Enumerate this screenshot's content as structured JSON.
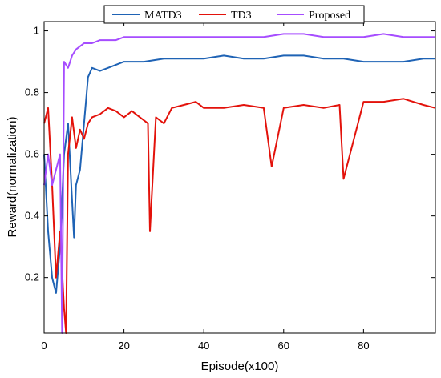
{
  "chart_data": {
    "type": "line",
    "xlabel": "Episode(x100)",
    "ylabel": "Reward(normalization)",
    "xlim": [
      0,
      98
    ],
    "ylim": [
      0.02,
      1.03
    ],
    "xticks": [
      0,
      20,
      40,
      60,
      80
    ],
    "yticks": [
      0.2,
      0.4,
      0.6,
      0.8,
      1
    ],
    "xtick_labels": [
      "0",
      "20",
      "40",
      "60",
      "80"
    ],
    "ytick_labels": [
      "0.2",
      "0.4",
      "0.6",
      "0.8",
      "1"
    ],
    "grid": false,
    "legend_position": "top-center, above plot",
    "series": [
      {
        "name": "MATD3",
        "color": "#1f63b5",
        "x": [
          0,
          1,
          2,
          3,
          4,
          5,
          6,
          7,
          7.5,
          8,
          9,
          10,
          11,
          12,
          14,
          16,
          18,
          20,
          25,
          30,
          35,
          40,
          45,
          50,
          55,
          60,
          65,
          70,
          75,
          80,
          85,
          90,
          95,
          98
        ],
        "values": [
          0.6,
          0.35,
          0.2,
          0.15,
          0.3,
          0.6,
          0.7,
          0.45,
          0.33,
          0.5,
          0.55,
          0.7,
          0.85,
          0.88,
          0.87,
          0.88,
          0.89,
          0.9,
          0.9,
          0.91,
          0.91,
          0.91,
          0.92,
          0.91,
          0.91,
          0.92,
          0.92,
          0.91,
          0.91,
          0.9,
          0.9,
          0.9,
          0.91,
          0.91
        ]
      },
      {
        "name": "TD3",
        "color": "#e3120b",
        "x": [
          0,
          1,
          2,
          3,
          4,
          5,
          5.5,
          6,
          7,
          8,
          9,
          10,
          11,
          12,
          14,
          16,
          18,
          20,
          22,
          24,
          26,
          26.5,
          28,
          30,
          32,
          35,
          38,
          40,
          45,
          50,
          55,
          57,
          60,
          65,
          70,
          74,
          75,
          80,
          85,
          90,
          95,
          98
        ],
        "values": [
          0.7,
          0.75,
          0.5,
          0.2,
          0.35,
          0.1,
          0.02,
          0.6,
          0.72,
          0.62,
          0.68,
          0.65,
          0.7,
          0.72,
          0.73,
          0.75,
          0.74,
          0.72,
          0.74,
          0.72,
          0.7,
          0.35,
          0.72,
          0.7,
          0.75,
          0.76,
          0.77,
          0.75,
          0.75,
          0.76,
          0.75,
          0.56,
          0.75,
          0.76,
          0.75,
          0.76,
          0.52,
          0.77,
          0.77,
          0.78,
          0.76,
          0.75
        ]
      },
      {
        "name": "Proposed",
        "color": "#a64dff",
        "x": [
          0,
          1,
          2,
          3,
          4,
          4.5,
          5,
          6,
          7,
          8,
          9,
          10,
          12,
          14,
          16,
          18,
          20,
          25,
          30,
          35,
          40,
          45,
          50,
          55,
          60,
          65,
          70,
          75,
          80,
          85,
          90,
          95,
          98
        ],
        "values": [
          0.5,
          0.6,
          0.5,
          0.55,
          0.6,
          0.02,
          0.9,
          0.88,
          0.92,
          0.94,
          0.95,
          0.96,
          0.96,
          0.97,
          0.97,
          0.97,
          0.98,
          0.98,
          0.98,
          0.98,
          0.98,
          0.98,
          0.98,
          0.98,
          0.99,
          0.99,
          0.98,
          0.98,
          0.98,
          0.99,
          0.98,
          0.98,
          0.98
        ]
      }
    ]
  }
}
